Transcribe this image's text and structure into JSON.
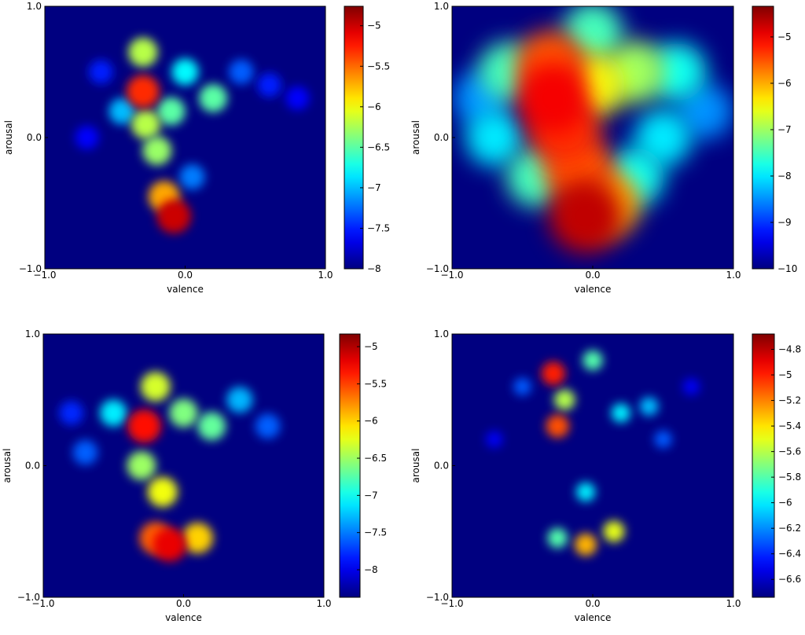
{
  "chart_data": [
    {
      "type": "heatmap",
      "xlabel": "valence",
      "ylabel": "arousal",
      "colormap": "jet",
      "xlim": [
        -1,
        1
      ],
      "ylim": [
        -1,
        1
      ],
      "xticks": [
        {
          "value": -1,
          "label": "−1.0"
        },
        {
          "value": 0,
          "label": "0.0"
        },
        {
          "value": 1,
          "label": "1.0"
        }
      ],
      "yticks": [
        {
          "value": -1,
          "label": "−1.0"
        },
        {
          "value": 0,
          "label": "0.0"
        },
        {
          "value": 1,
          "label": "1.0"
        }
      ],
      "clim": [
        -8,
        -4.76
      ],
      "cticks": [
        {
          "value": -5,
          "label": "−5"
        },
        {
          "value": -5.5,
          "label": "−5.5"
        },
        {
          "value": -6,
          "label": "−6"
        },
        {
          "value": -6.5,
          "label": "−6.5"
        },
        {
          "value": -7,
          "label": "−7"
        },
        {
          "value": -7.5,
          "label": "−7.5"
        },
        {
          "value": -8,
          "label": "−8"
        }
      ],
      "x": [
        -0.6,
        -0.7,
        0.8,
        0.6,
        0.4,
        -0.45,
        0.0,
        -0.1,
        0.2,
        0.05,
        -0.3,
        -0.28,
        -0.2,
        -0.15,
        -0.3,
        -0.08
      ],
      "y": [
        0.5,
        0.0,
        0.3,
        0.4,
        0.5,
        0.2,
        0.5,
        0.2,
        0.3,
        -0.3,
        0.65,
        0.1,
        -0.1,
        -0.45,
        0.35,
        -0.6
      ],
      "values": [
        -7.5,
        -7.6,
        -7.6,
        -7.5,
        -7.3,
        -7.0,
        -6.8,
        -6.5,
        -6.5,
        -7.2,
        -6.2,
        -6.2,
        -6.3,
        -5.7,
        -5.3,
        -5.0
      ]
    },
    {
      "type": "heatmap",
      "xlabel": "valence",
      "ylabel": "arousal",
      "colormap": "jet",
      "xlim": [
        -1,
        1
      ],
      "ylim": [
        -1,
        1
      ],
      "xticks": [
        {
          "value": -1,
          "label": "−1.0"
        },
        {
          "value": 0,
          "label": "0.0"
        },
        {
          "value": 1,
          "label": "1.0"
        }
      ],
      "yticks": [
        {
          "value": -1,
          "label": "−1.0"
        },
        {
          "value": 0,
          "label": "0.0"
        },
        {
          "value": 1,
          "label": "1.0"
        }
      ],
      "clim": [
        -10,
        -4.34
      ],
      "cticks": [
        {
          "value": -5,
          "label": "−5"
        },
        {
          "value": -6,
          "label": "−6"
        },
        {
          "value": -7,
          "label": "−7"
        },
        {
          "value": -8,
          "label": "−8"
        },
        {
          "value": -9,
          "label": "−9"
        },
        {
          "value": -10,
          "label": "−10"
        }
      ],
      "x": [
        -0.8,
        0.8,
        -0.7,
        0.5,
        0.3,
        -0.4,
        -0.6,
        0.6,
        0.0,
        0.3,
        0.0,
        0.1,
        -0.3,
        -0.1,
        -0.2,
        -0.28,
        -0.05
      ],
      "y": [
        0.3,
        0.2,
        0.0,
        0.0,
        -0.3,
        -0.3,
        0.5,
        0.5,
        0.8,
        0.5,
        0.4,
        -0.5,
        0.55,
        -0.25,
        0.05,
        0.3,
        -0.6
      ],
      "values": [
        -8.5,
        -8.5,
        -8.0,
        -8.0,
        -7.8,
        -7.5,
        -7.5,
        -7.8,
        -7.5,
        -7.0,
        -6.5,
        -6.0,
        -5.5,
        -5.5,
        -5.3,
        -5.0,
        -4.7
      ]
    },
    {
      "type": "heatmap",
      "xlabel": "valence",
      "ylabel": "arousal",
      "colormap": "jet",
      "xlim": [
        -1,
        1
      ],
      "ylim": [
        -1,
        1
      ],
      "xticks": [
        {
          "value": -1,
          "label": "−1.0"
        },
        {
          "value": 0,
          "label": "0.0"
        },
        {
          "value": 1,
          "label": "1.0"
        }
      ],
      "yticks": [
        {
          "value": -1,
          "label": "−1.0"
        },
        {
          "value": 0,
          "label": "0.0"
        },
        {
          "value": 1,
          "label": "1.0"
        }
      ],
      "clim": [
        -8.37,
        -4.83
      ],
      "cticks": [
        {
          "value": -5,
          "label": "−5"
        },
        {
          "value": -5.5,
          "label": "−5.5"
        },
        {
          "value": -6,
          "label": "−6"
        },
        {
          "value": -6.5,
          "label": "−6.5"
        },
        {
          "value": -7,
          "label": "−7"
        },
        {
          "value": -7.5,
          "label": "−7.5"
        },
        {
          "value": -8,
          "label": "−8"
        }
      ],
      "x": [
        -0.8,
        -0.7,
        0.6,
        0.4,
        -0.5,
        0.2,
        0.0,
        -0.3,
        -0.2,
        -0.15,
        0.1,
        -0.2,
        -0.1,
        -0.28
      ],
      "y": [
        0.4,
        0.1,
        0.3,
        0.5,
        0.4,
        0.3,
        0.4,
        0.0,
        0.6,
        -0.2,
        -0.55,
        -0.55,
        -0.6,
        0.3
      ],
      "values": [
        -7.8,
        -7.6,
        -7.6,
        -7.3,
        -7.1,
        -6.7,
        -6.6,
        -6.5,
        -6.3,
        -6.2,
        -6.0,
        -5.6,
        -5.2,
        -5.3
      ]
    },
    {
      "type": "heatmap",
      "xlabel": "valence",
      "ylabel": "arousal",
      "colormap": "jet",
      "xlim": [
        -1,
        1
      ],
      "ylim": [
        -1,
        1
      ],
      "xticks": [
        {
          "value": -1,
          "label": "−1.0"
        },
        {
          "value": 0,
          "label": "0.0"
        },
        {
          "value": 1,
          "label": "1.0"
        }
      ],
      "yticks": [
        {
          "value": -1,
          "label": "−1.0"
        },
        {
          "value": 0,
          "label": "0.0"
        },
        {
          "value": 1,
          "label": "1.0"
        }
      ],
      "clim": [
        -6.74,
        -4.68
      ],
      "cticks": [
        {
          "value": -4.8,
          "label": "−4.8"
        },
        {
          "value": -5,
          "label": "−5"
        },
        {
          "value": -5.2,
          "label": "−5.2"
        },
        {
          "value": -5.4,
          "label": "−5.4"
        },
        {
          "value": -5.6,
          "label": "−5.6"
        },
        {
          "value": -5.8,
          "label": "−5.8"
        },
        {
          "value": -6,
          "label": "−6"
        },
        {
          "value": -6.2,
          "label": "−6.2"
        },
        {
          "value": -6.4,
          "label": "−6.4"
        },
        {
          "value": -6.6,
          "label": "−6.6"
        }
      ],
      "x": [
        -0.7,
        0.7,
        -0.5,
        0.5,
        0.4,
        0.2,
        -0.05,
        0.0,
        -0.25,
        -0.2,
        0.15,
        -0.05,
        -0.25,
        -0.28
      ],
      "y": [
        0.2,
        0.6,
        0.6,
        0.2,
        0.45,
        0.4,
        -0.2,
        0.8,
        -0.55,
        0.5,
        -0.5,
        -0.6,
        0.3,
        0.7
      ],
      "values": [
        -6.5,
        -6.5,
        -6.3,
        -6.3,
        -6.1,
        -6.0,
        -6.0,
        -5.8,
        -5.8,
        -5.6,
        -5.5,
        -5.3,
        -5.1,
        -5.0
      ]
    }
  ]
}
